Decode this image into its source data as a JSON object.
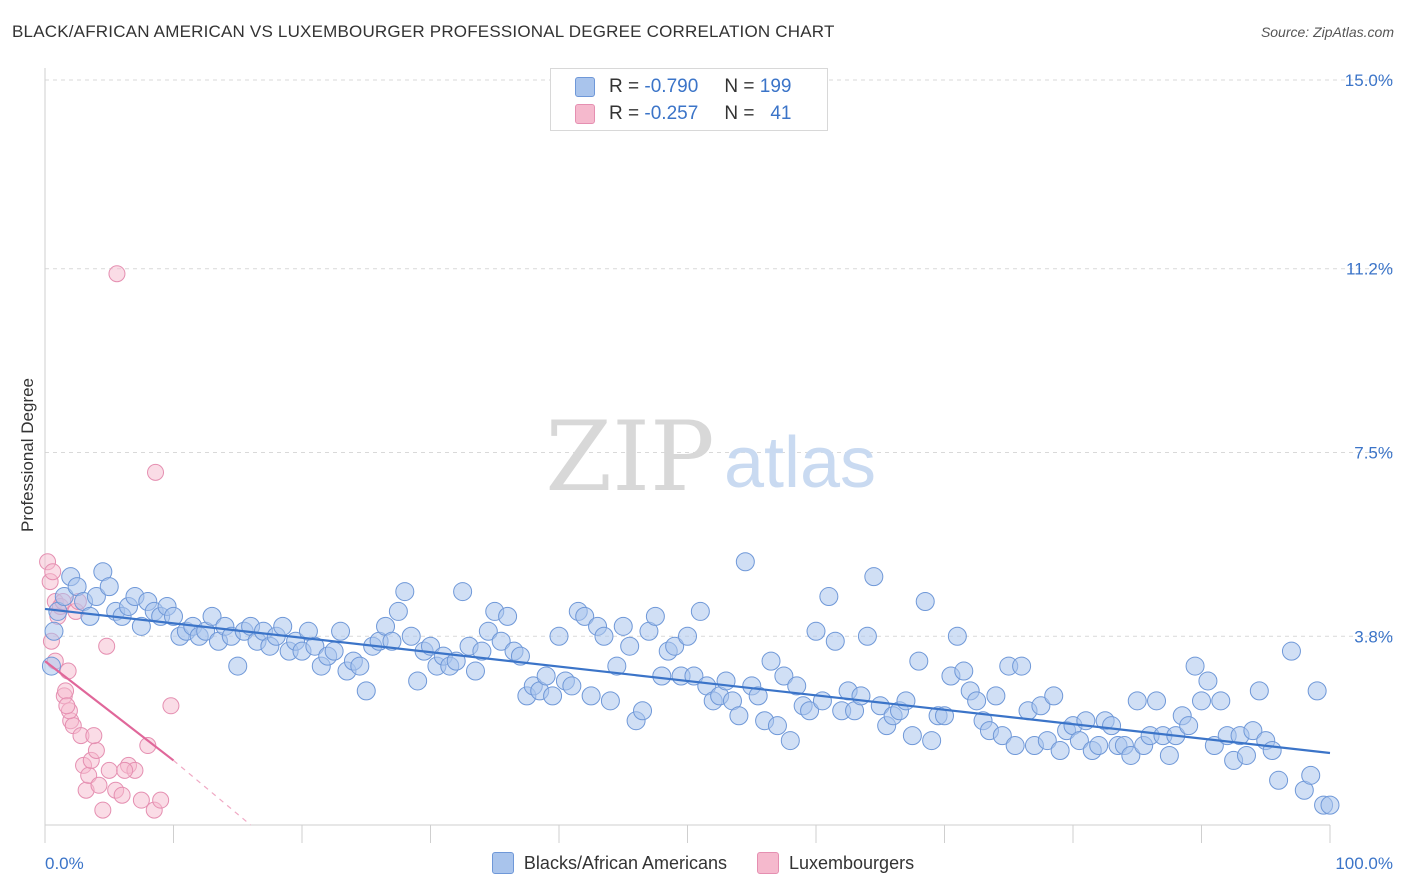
{
  "title": "BLACK/AFRICAN AMERICAN VS LUXEMBOURGER PROFESSIONAL DEGREE CORRELATION CHART",
  "source": "Source: ZipAtlas.com",
  "watermark": {
    "zip": "ZIP",
    "atlas": "atlas"
  },
  "colors": {
    "blue": "#3b74c8",
    "blue_fill": "#a9c4ec",
    "pink": "#e0679a",
    "pink_fill": "#f5b9cd",
    "grid": "#d9d9d9"
  },
  "legend": {
    "rows": [
      {
        "r_label": "R =",
        "r_value": "-0.790",
        "n_label": "N =",
        "n_value": "199"
      },
      {
        "r_label": "R =",
        "r_value": "-0.257",
        "n_label": "N =",
        "n_value": "41"
      }
    ]
  },
  "chart_data": {
    "type": "scatter",
    "title": "BLACK/AFRICAN AMERICAN VS LUXEMBOURGER PROFESSIONAL DEGREE CORRELATION CHART",
    "xlabel": "",
    "ylabel": "Professional Degree",
    "xlim": [
      0,
      100
    ],
    "ylim": [
      0,
      15.0
    ],
    "y_ticks": [
      3.8,
      7.5,
      11.2,
      15.0
    ],
    "y_tick_labels": [
      "3.8%",
      "7.5%",
      "11.2%",
      "15.0%"
    ],
    "x_tick_labels": [
      "0.0%",
      "100.0%"
    ],
    "series": [
      {
        "name": "Blacks/African Americans",
        "r": -0.79,
        "n": 199,
        "trend": {
          "x": [
            0,
            100
          ],
          "y": [
            4.35,
            1.45
          ]
        },
        "points": [
          [
            0.5,
            3.2
          ],
          [
            0.7,
            3.9
          ],
          [
            1.0,
            4.3
          ],
          [
            1.5,
            4.6
          ],
          [
            2.0,
            5.0
          ],
          [
            2.5,
            4.8
          ],
          [
            3.0,
            4.5
          ],
          [
            3.5,
            4.2
          ],
          [
            4.0,
            4.6
          ],
          [
            4.5,
            5.1
          ],
          [
            5.0,
            4.8
          ],
          [
            5.5,
            4.3
          ],
          [
            6.0,
            4.2
          ],
          [
            6.5,
            4.4
          ],
          [
            7.0,
            4.6
          ],
          [
            7.5,
            4.0
          ],
          [
            8.0,
            4.5
          ],
          [
            8.5,
            4.3
          ],
          [
            9.0,
            4.2
          ],
          [
            9.5,
            4.4
          ],
          [
            10.0,
            4.2
          ],
          [
            10.5,
            3.8
          ],
          [
            11.0,
            3.9
          ],
          [
            11.5,
            4.0
          ],
          [
            12.0,
            3.8
          ],
          [
            12.5,
            3.9
          ],
          [
            13.0,
            4.2
          ],
          [
            13.5,
            3.7
          ],
          [
            14.0,
            4.0
          ],
          [
            14.5,
            3.8
          ],
          [
            15.0,
            3.2
          ],
          [
            15.5,
            3.9
          ],
          [
            16.0,
            4.0
          ],
          [
            16.5,
            3.7
          ],
          [
            17.0,
            3.9
          ],
          [
            17.5,
            3.6
          ],
          [
            18.0,
            3.8
          ],
          [
            18.5,
            4.0
          ],
          [
            19.0,
            3.5
          ],
          [
            19.5,
            3.7
          ],
          [
            20.0,
            3.5
          ],
          [
            20.5,
            3.9
          ],
          [
            21.0,
            3.6
          ],
          [
            21.5,
            3.2
          ],
          [
            22.0,
            3.4
          ],
          [
            22.5,
            3.5
          ],
          [
            23.0,
            3.9
          ],
          [
            23.5,
            3.1
          ],
          [
            24.0,
            3.3
          ],
          [
            24.5,
            3.2
          ],
          [
            25.0,
            2.7
          ],
          [
            25.5,
            3.6
          ],
          [
            26.0,
            3.7
          ],
          [
            26.5,
            4.0
          ],
          [
            27.0,
            3.7
          ],
          [
            27.5,
            4.3
          ],
          [
            28.0,
            4.7
          ],
          [
            28.5,
            3.8
          ],
          [
            29.0,
            2.9
          ],
          [
            29.5,
            3.5
          ],
          [
            30.0,
            3.6
          ],
          [
            30.5,
            3.2
          ],
          [
            31.0,
            3.4
          ],
          [
            31.5,
            3.2
          ],
          [
            32.0,
            3.3
          ],
          [
            32.5,
            4.7
          ],
          [
            33.0,
            3.6
          ],
          [
            33.5,
            3.1
          ],
          [
            34.0,
            3.5
          ],
          [
            34.5,
            3.9
          ],
          [
            35.0,
            4.3
          ],
          [
            35.5,
            3.7
          ],
          [
            36.0,
            4.2
          ],
          [
            36.5,
            3.5
          ],
          [
            37.0,
            3.4
          ],
          [
            37.5,
            2.6
          ],
          [
            38.0,
            2.8
          ],
          [
            38.5,
            2.7
          ],
          [
            39.0,
            3.0
          ],
          [
            39.5,
            2.6
          ],
          [
            40.0,
            3.8
          ],
          [
            40.5,
            2.9
          ],
          [
            41.0,
            2.8
          ],
          [
            41.5,
            4.3
          ],
          [
            42.0,
            4.2
          ],
          [
            42.5,
            2.6
          ],
          [
            43.0,
            4.0
          ],
          [
            43.5,
            3.8
          ],
          [
            44.0,
            2.5
          ],
          [
            44.5,
            3.2
          ],
          [
            45.0,
            4.0
          ],
          [
            45.5,
            3.6
          ],
          [
            46.0,
            2.1
          ],
          [
            46.5,
            2.3
          ],
          [
            47.0,
            3.9
          ],
          [
            47.5,
            4.2
          ],
          [
            48.0,
            3.0
          ],
          [
            48.5,
            3.5
          ],
          [
            49.0,
            3.6
          ],
          [
            49.5,
            3.0
          ],
          [
            50.0,
            3.8
          ],
          [
            50.5,
            3.0
          ],
          [
            51.0,
            4.3
          ],
          [
            51.5,
            2.8
          ],
          [
            52.0,
            2.5
          ],
          [
            52.5,
            2.6
          ],
          [
            53.0,
            2.9
          ],
          [
            53.5,
            2.5
          ],
          [
            54.0,
            2.2
          ],
          [
            54.5,
            5.3
          ],
          [
            55.0,
            2.8
          ],
          [
            55.5,
            2.6
          ],
          [
            56.0,
            2.1
          ],
          [
            56.5,
            3.3
          ],
          [
            57.0,
            2.0
          ],
          [
            57.5,
            3.0
          ],
          [
            58.0,
            1.7
          ],
          [
            58.5,
            2.8
          ],
          [
            59.0,
            2.4
          ],
          [
            59.5,
            2.3
          ],
          [
            60.0,
            3.9
          ],
          [
            60.5,
            2.5
          ],
          [
            61.0,
            4.6
          ],
          [
            61.5,
            3.7
          ],
          [
            62.0,
            2.3
          ],
          [
            62.5,
            2.7
          ],
          [
            63.0,
            2.3
          ],
          [
            63.5,
            2.6
          ],
          [
            64.0,
            3.8
          ],
          [
            64.5,
            5.0
          ],
          [
            65.0,
            2.4
          ],
          [
            65.5,
            2.0
          ],
          [
            66.0,
            2.2
          ],
          [
            66.5,
            2.3
          ],
          [
            67.0,
            2.5
          ],
          [
            67.5,
            1.8
          ],
          [
            68.0,
            3.3
          ],
          [
            68.5,
            4.5
          ],
          [
            69.0,
            1.7
          ],
          [
            69.5,
            2.2
          ],
          [
            70.0,
            2.2
          ],
          [
            70.5,
            3.0
          ],
          [
            71.0,
            3.8
          ],
          [
            71.5,
            3.1
          ],
          [
            72.0,
            2.7
          ],
          [
            72.5,
            2.5
          ],
          [
            73.0,
            2.1
          ],
          [
            73.5,
            1.9
          ],
          [
            74.0,
            2.6
          ],
          [
            74.5,
            1.8
          ],
          [
            75.0,
            3.2
          ],
          [
            75.5,
            1.6
          ],
          [
            76.0,
            3.2
          ],
          [
            76.5,
            2.3
          ],
          [
            77.0,
            1.6
          ],
          [
            77.5,
            2.4
          ],
          [
            78.0,
            1.7
          ],
          [
            78.5,
            2.6
          ],
          [
            79.0,
            1.5
          ],
          [
            79.5,
            1.9
          ],
          [
            80.0,
            2.0
          ],
          [
            80.5,
            1.7
          ],
          [
            81.0,
            2.1
          ],
          [
            81.5,
            1.5
          ],
          [
            82.0,
            1.6
          ],
          [
            82.5,
            2.1
          ],
          [
            83.0,
            2.0
          ],
          [
            83.5,
            1.6
          ],
          [
            84.0,
            1.6
          ],
          [
            84.5,
            1.4
          ],
          [
            85.0,
            2.5
          ],
          [
            85.5,
            1.6
          ],
          [
            86.0,
            1.8
          ],
          [
            86.5,
            2.5
          ],
          [
            87.0,
            1.8
          ],
          [
            87.5,
            1.4
          ],
          [
            88.0,
            1.8
          ],
          [
            88.5,
            2.2
          ],
          [
            89.0,
            2.0
          ],
          [
            89.5,
            3.2
          ],
          [
            90.0,
            2.5
          ],
          [
            90.5,
            2.9
          ],
          [
            91.0,
            1.6
          ],
          [
            91.5,
            2.5
          ],
          [
            92.0,
            1.8
          ],
          [
            92.5,
            1.3
          ],
          [
            93.0,
            1.8
          ],
          [
            93.5,
            1.4
          ],
          [
            94.0,
            1.9
          ],
          [
            94.5,
            2.7
          ],
          [
            95.0,
            1.7
          ],
          [
            95.5,
            1.5
          ],
          [
            96.0,
            0.9
          ],
          [
            97.0,
            3.5
          ],
          [
            98.0,
            0.7
          ],
          [
            98.5,
            1.0
          ],
          [
            99.0,
            2.7
          ],
          [
            99.5,
            0.4
          ],
          [
            100.0,
            0.4
          ]
        ]
      },
      {
        "name": "Luxembourgers",
        "r": -0.257,
        "n": 41,
        "trend": {
          "x": [
            0,
            10
          ],
          "y": [
            3.3,
            1.3
          ]
        },
        "trend_ext": {
          "x": [
            10,
            16
          ],
          "y": [
            1.3,
            0.0
          ]
        },
        "points": [
          [
            0.2,
            5.3
          ],
          [
            0.4,
            4.9
          ],
          [
            0.6,
            5.1
          ],
          [
            0.8,
            4.5
          ],
          [
            1.0,
            4.2
          ],
          [
            1.2,
            4.4
          ],
          [
            1.4,
            4.5
          ],
          [
            0.5,
            3.7
          ],
          [
            0.8,
            3.3
          ],
          [
            1.5,
            2.6
          ],
          [
            1.8,
            3.1
          ],
          [
            2.0,
            2.1
          ],
          [
            2.2,
            2.0
          ],
          [
            2.4,
            4.3
          ],
          [
            2.6,
            4.5
          ],
          [
            3.0,
            1.2
          ],
          [
            3.2,
            0.7
          ],
          [
            3.4,
            1.0
          ],
          [
            3.6,
            1.3
          ],
          [
            4.0,
            1.5
          ],
          [
            4.2,
            0.8
          ],
          [
            4.5,
            0.3
          ],
          [
            5.0,
            1.1
          ],
          [
            5.5,
            0.7
          ],
          [
            6.0,
            0.6
          ],
          [
            6.5,
            1.2
          ],
          [
            7.0,
            1.1
          ],
          [
            7.5,
            0.5
          ],
          [
            8.0,
            1.6
          ],
          [
            8.5,
            0.3
          ],
          [
            9.0,
            0.5
          ],
          [
            5.6,
            11.1
          ],
          [
            8.6,
            7.1
          ],
          [
            9.8,
            2.4
          ],
          [
            4.8,
            3.6
          ],
          [
            1.6,
            2.7
          ],
          [
            1.9,
            2.3
          ],
          [
            2.8,
            1.8
          ],
          [
            3.8,
            1.8
          ],
          [
            1.7,
            2.4
          ],
          [
            6.2,
            1.1
          ]
        ]
      }
    ]
  },
  "bottom_legend": [
    "Blacks/African Americans",
    "Luxembourgers"
  ]
}
